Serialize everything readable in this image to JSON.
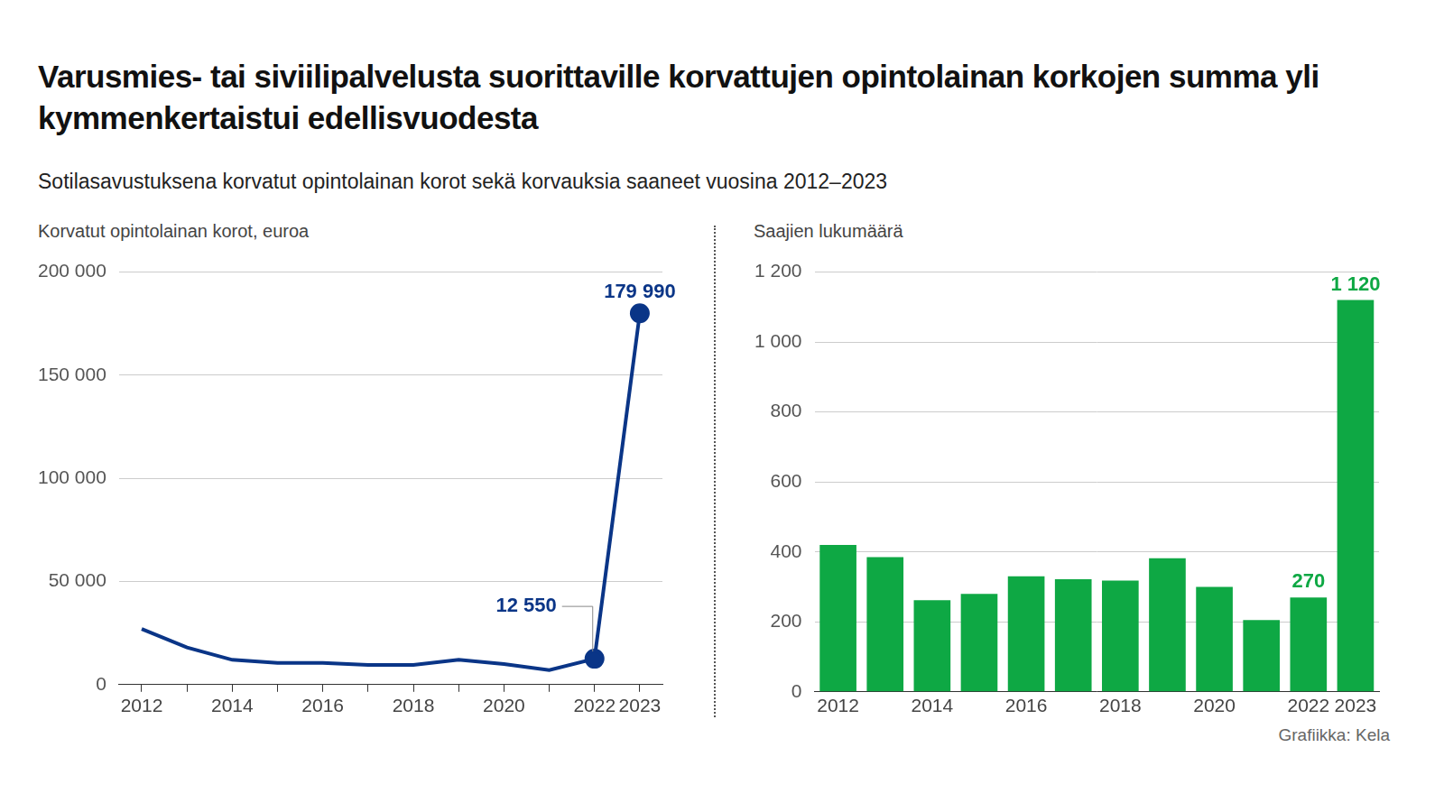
{
  "title": "Varusmies- tai siviilipalvelusta suorittaville korvattujen opintolainan korkojen summa yli kymmenkertaistui edellisvuodesta",
  "subtitle": "Sotilasavustuksena korvatut opintolainan korot sekä korvauksia saaneet vuosina 2012–2023",
  "source": "Grafiikka: Kela",
  "chart_data": [
    {
      "type": "line",
      "y_label": "Korvatut opintolainan korot, euroa",
      "categories": [
        "2012",
        null,
        "2014",
        null,
        "2016",
        null,
        "2018",
        null,
        "2020",
        null,
        "2022",
        "2023"
      ],
      "values": [
        27000,
        18000,
        12000,
        10500,
        10500,
        9500,
        9500,
        12000,
        10000,
        7000,
        12550,
        179990
      ],
      "value_labels": [
        null,
        null,
        null,
        null,
        null,
        null,
        null,
        null,
        null,
        null,
        "12 550",
        "179 990"
      ],
      "data_labels": true,
      "color": "#0a3587",
      "marker": "circle",
      "ylim": [
        0,
        200000
      ],
      "yticks": [
        0,
        {
          "value": 50000,
          "label": "50 000"
        },
        {
          "value": 100000,
          "label": "100 000"
        },
        {
          "value": 150000,
          "label": "150 000"
        },
        {
          "value": 200000,
          "label": "200 000"
        }
      ],
      "grid": true
    },
    {
      "type": "bar",
      "y_label": "Saajien lukumäärä",
      "categories": [
        "2012",
        null,
        "2014",
        null,
        "2016",
        null,
        "2018",
        null,
        "2020",
        null,
        "2022",
        "2023"
      ],
      "values": [
        420,
        385,
        262,
        280,
        330,
        322,
        318,
        382,
        300,
        205,
        270,
        1120
      ],
      "value_labels": [
        null,
        null,
        null,
        null,
        null,
        null,
        null,
        null,
        null,
        null,
        "270",
        "1 120"
      ],
      "data_labels": true,
      "color": "#0ea844",
      "ylim": [
        0,
        1200
      ],
      "yticks": [
        0,
        200,
        400,
        600,
        800,
        {
          "value": 1000,
          "label": "1 000"
        },
        {
          "value": 1200,
          "label": "1 200"
        }
      ],
      "grid": true
    }
  ]
}
